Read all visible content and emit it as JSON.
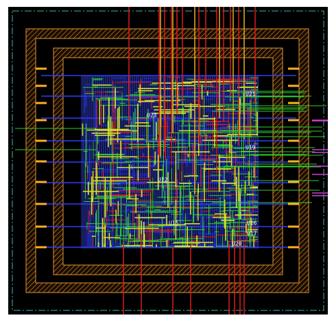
{
  "labels": [
    "U21",
    "U23",
    "U19",
    "U12",
    "U15",
    "U16",
    "U17",
    "U20"
  ]
}
